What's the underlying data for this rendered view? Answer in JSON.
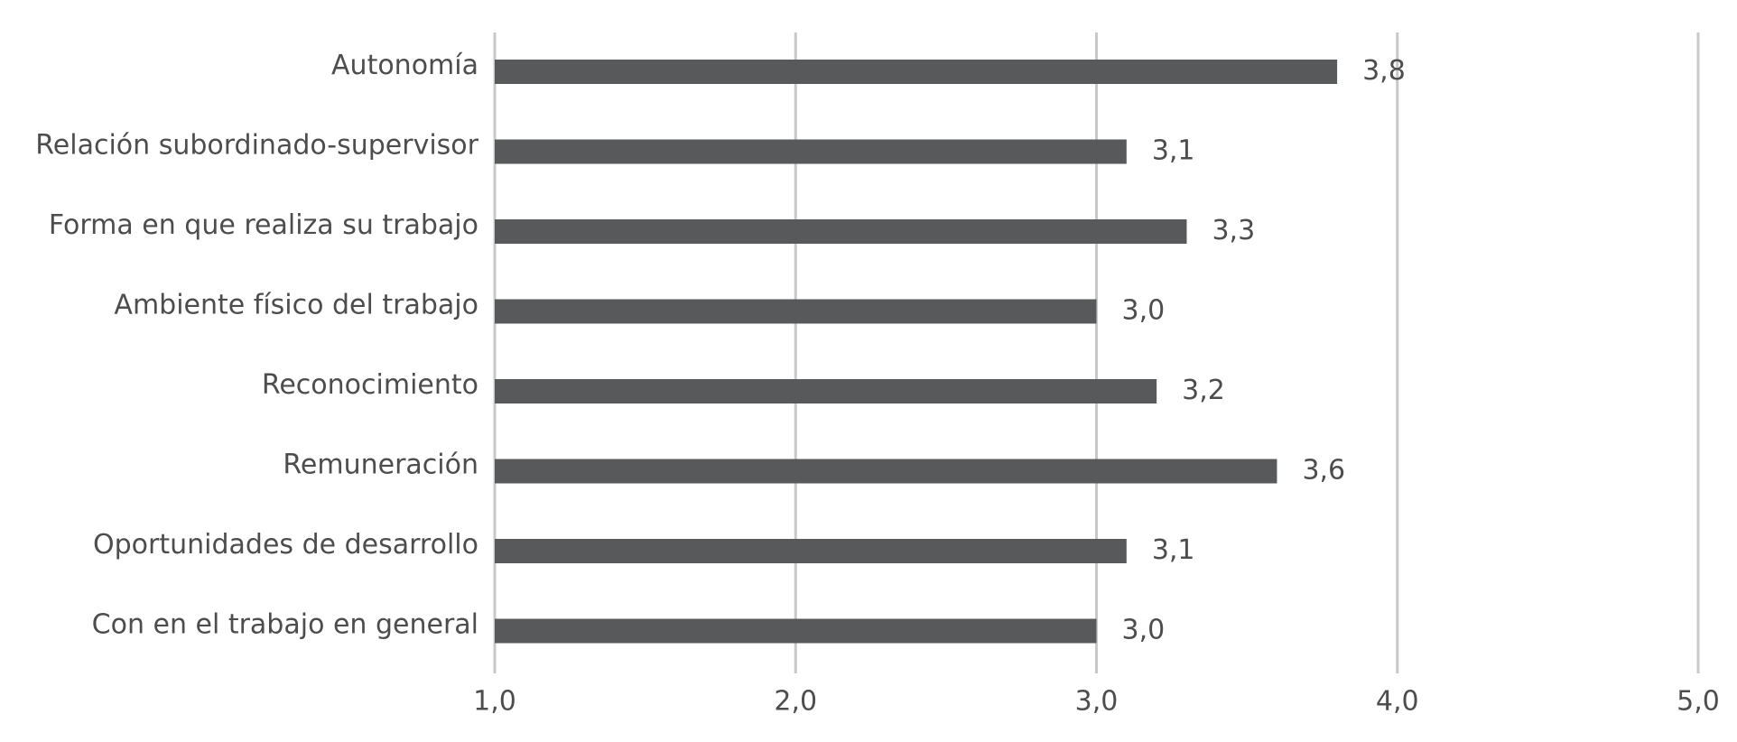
{
  "chart_data": {
    "type": "bar",
    "orientation": "horizontal",
    "categories": [
      "Autonomía",
      "Relación subordinado-supervisor",
      "Forma en que realiza su trabajo",
      "Ambiente físico del trabajo",
      "Reconocimiento",
      "Remuneración",
      "Oportunidades de desarrollo",
      "Con en el trabajo en general"
    ],
    "values": [
      3.8,
      3.1,
      3.3,
      3.0,
      3.2,
      3.6,
      3.1,
      3.0
    ],
    "value_labels": [
      "3,8",
      "3,1",
      "3,3",
      "3,0",
      "3,2",
      "3,6",
      "3,1",
      "3,0"
    ],
    "color": "#58595b",
    "xlim": [
      1,
      5
    ],
    "xticks": [
      {
        "value": 1,
        "label": "1,0"
      },
      {
        "value": 2,
        "label": "2,0"
      },
      {
        "value": 3,
        "label": "3,0"
      },
      {
        "value": 4,
        "label": "4,0"
      },
      {
        "value": 5,
        "label": "5,0"
      }
    ],
    "grid": true
  }
}
